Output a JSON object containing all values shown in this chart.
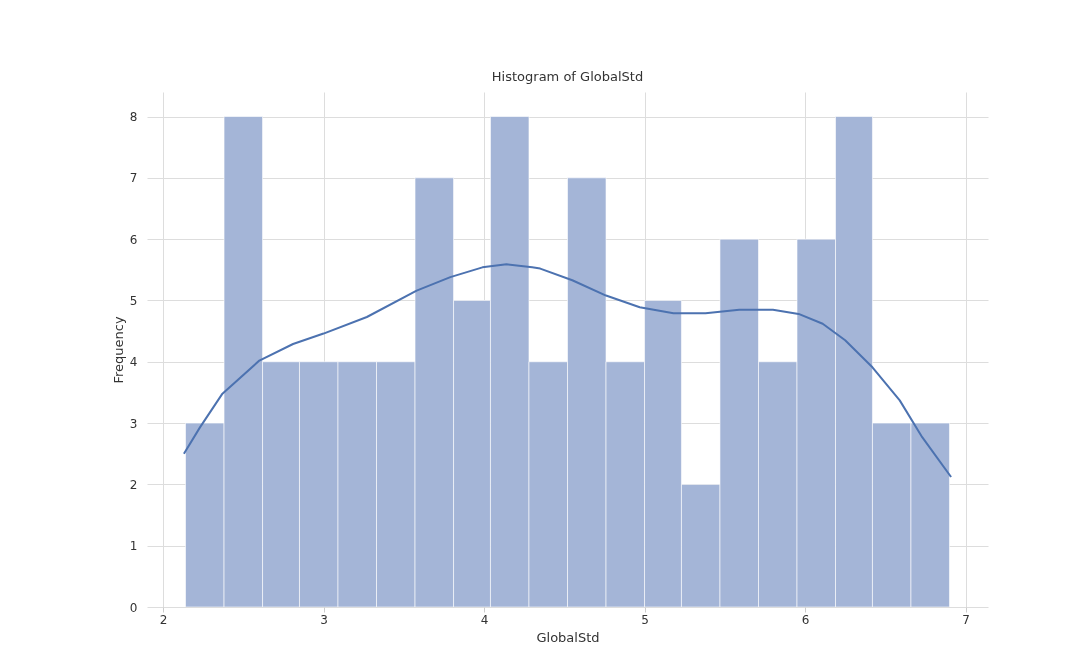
{
  "chart_data": {
    "type": "histogram",
    "title": "Histogram of GlobalStd",
    "xlabel": "GlobalStd",
    "ylabel": "Frequency",
    "bins": [
      2.14,
      2.38,
      2.62,
      2.85,
      3.09,
      3.33,
      3.57,
      3.81,
      4.04,
      4.28,
      4.52,
      4.76,
      5.0,
      5.23,
      5.47,
      5.71,
      5.95,
      6.19,
      6.42,
      6.66,
      6.9
    ],
    "values": [
      3,
      8,
      4,
      4,
      4,
      4,
      7,
      5,
      8,
      4,
      7,
      4,
      5,
      2,
      6,
      4,
      6,
      8,
      3,
      3
    ],
    "color": "#a4b5d7",
    "series": [
      {
        "type": "line",
        "color": "#4c72b0",
        "x": [
          2.13,
          2.23,
          2.37,
          2.6,
          2.81,
          3.0,
          3.27,
          3.58,
          3.79,
          3.99,
          4.14,
          4.3,
          4.35,
          4.55,
          4.76,
          4.97,
          5.18,
          5.38,
          5.59,
          5.8,
          5.96,
          6.11,
          6.25,
          6.42,
          6.59,
          6.73,
          6.91
        ],
        "values": [
          2.5,
          2.93,
          3.48,
          4.02,
          4.29,
          4.46,
          4.73,
          5.16,
          5.38,
          5.54,
          5.59,
          5.54,
          5.52,
          5.33,
          5.08,
          4.89,
          4.79,
          4.79,
          4.85,
          4.85,
          4.78,
          4.62,
          4.35,
          3.91,
          3.37,
          2.77,
          2.12
        ]
      }
    ],
    "xlim": [
      1.9,
      7.14
    ],
    "ylim": [
      0,
      8.4
    ],
    "xticks": [
      2,
      3,
      4,
      5,
      6,
      7
    ],
    "yticks": [
      0,
      1,
      2,
      3,
      4,
      5,
      6,
      7,
      8
    ],
    "grid": true
  }
}
